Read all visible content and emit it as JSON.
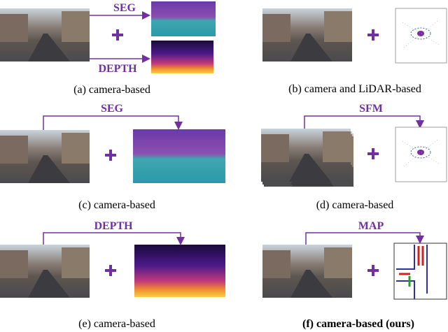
{
  "panels": [
    {
      "caption": "(a) camera-based",
      "labels": [
        "SEG",
        "DEPTH"
      ]
    },
    {
      "caption": "(b) camera and LiDAR-based"
    },
    {
      "caption": "(c) camera-based",
      "labels": [
        "SEG"
      ]
    },
    {
      "caption": "(d) camera-based",
      "labels": [
        "SFM"
      ]
    },
    {
      "caption": "(e) camera-based",
      "labels": [
        "DEPTH"
      ]
    },
    {
      "caption": "(f) camera-based (ours)",
      "labels": [
        "MAP"
      ]
    }
  ]
}
